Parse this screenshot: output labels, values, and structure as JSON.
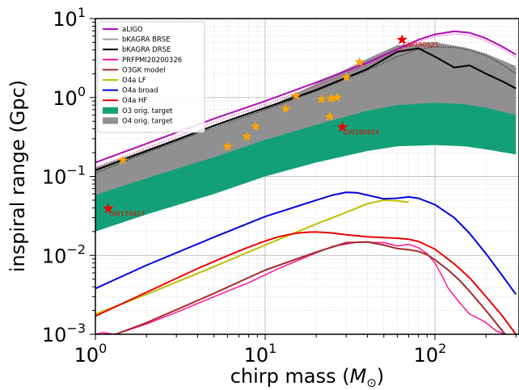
{
  "chart_data": {
    "type": "line",
    "xlabel": "chirp mass (",
    "xlabel_symbol": "M",
    "xlabel_sub": "⊙",
    "xlabel_close": ")",
    "ylabel": "inspiral range (Gpc)",
    "xscale": "log",
    "yscale": "log",
    "xlim": [
      1,
      300
    ],
    "ylim": [
      0.001,
      10
    ],
    "grid": true,
    "legend_position": "top-left",
    "x_ticks": [
      {
        "value": 1,
        "base": "10",
        "exp": "0"
      },
      {
        "value": 10,
        "base": "10",
        "exp": "1"
      },
      {
        "value": 100,
        "base": "10",
        "exp": "2"
      }
    ],
    "y_ticks": [
      {
        "value": 0.001,
        "base": "10",
        "exp": "−3"
      },
      {
        "value": 0.01,
        "base": "10",
        "exp": "−2"
      },
      {
        "value": 0.1,
        "base": "10",
        "exp": "−1"
      },
      {
        "value": 1,
        "base": "10",
        "exp": "0"
      },
      {
        "value": 10,
        "base": "10",
        "exp": "1"
      }
    ],
    "bands": [
      {
        "name": "O3 orig. target",
        "color": "#14a077",
        "x": [
          1,
          2,
          5,
          10,
          20,
          40,
          60,
          100,
          150,
          200,
          300
        ],
        "lower": [
          0.02,
          0.033,
          0.06,
          0.1,
          0.15,
          0.21,
          0.24,
          0.25,
          0.24,
          0.22,
          0.19
        ],
        "upper": [
          0.1,
          0.17,
          0.31,
          0.5,
          0.8,
          1.2,
          1.45,
          1.3,
          1.05,
          0.9,
          0.75
        ]
      },
      {
        "name": "O4 orig. target",
        "color": "#909090",
        "x": [
          1,
          2,
          5,
          10,
          20,
          40,
          60,
          100,
          150,
          200,
          300
        ],
        "lower": [
          0.058,
          0.095,
          0.175,
          0.29,
          0.45,
          0.68,
          0.8,
          0.86,
          0.82,
          0.74,
          0.6
        ],
        "upper": [
          0.13,
          0.22,
          0.42,
          0.72,
          1.5,
          3.1,
          4.6,
          5.0,
          4.3,
          3.6,
          2.5
        ]
      }
    ],
    "series": [
      {
        "name": "aLIGO",
        "color": "#b30bb3",
        "width": 2,
        "x": [
          1,
          2,
          5,
          10,
          20,
          40,
          60,
          80,
          100,
          130,
          160,
          200,
          250,
          300
        ],
        "values": [
          0.15,
          0.26,
          0.54,
          0.9,
          1.55,
          2.75,
          4.1,
          5.4,
          6.3,
          6.9,
          6.6,
          5.6,
          4.4,
          3.5
        ]
      },
      {
        "name": "bKAGRA BRSE",
        "color": "#a0a0a0",
        "width": 1,
        "dashed": true,
        "x": [
          1,
          2,
          5,
          10,
          20,
          40,
          60,
          80,
          100,
          130,
          160,
          200,
          250,
          300
        ],
        "values": [
          0.125,
          0.22,
          0.45,
          0.78,
          1.35,
          2.4,
          3.5,
          4.3,
          4.5,
          4.2,
          3.6,
          3.0,
          2.4,
          1.9
        ]
      },
      {
        "name": "bKAGRA DRSE",
        "color": "#000000",
        "width": 2,
        "x": [
          1,
          2,
          5,
          10,
          20,
          40,
          60,
          80,
          100,
          130,
          160,
          200,
          250,
          300
        ],
        "values": [
          0.12,
          0.21,
          0.44,
          0.74,
          1.25,
          2.3,
          3.8,
          4.2,
          3.3,
          2.4,
          2.55,
          2.0,
          1.6,
          1.3
        ]
      },
      {
        "name": "PRFPMI20200326",
        "color": "#ff1493",
        "width": 1.5,
        "x": [
          1,
          1.1,
          1.3,
          1.6,
          2,
          3,
          5,
          8,
          12,
          18,
          25,
          35,
          50,
          60,
          70,
          80,
          90,
          100,
          110,
          120,
          140,
          160,
          180,
          200,
          230,
          260,
          300
        ],
        "values": [
          0.001,
          0.00105,
          0.001,
          0.00115,
          0.00135,
          0.0019,
          0.003,
          0.0045,
          0.0068,
          0.0098,
          0.013,
          0.0147,
          0.0145,
          0.0132,
          0.0138,
          0.0125,
          0.0105,
          0.008,
          0.0055,
          0.0038,
          0.0025,
          0.0018,
          0.0016,
          0.0014,
          0.0011,
          0.001,
          0.0009
        ]
      },
      {
        "name": "O3GK model",
        "color": "#a52a2a",
        "width": 2,
        "x": [
          1,
          2,
          5,
          10,
          20,
          30,
          40,
          50,
          60,
          70,
          80,
          90,
          100,
          120,
          140,
          160,
          200,
          250,
          300
        ],
        "values": [
          0.0008,
          0.0014,
          0.0033,
          0.0065,
          0.011,
          0.0145,
          0.0148,
          0.0135,
          0.0122,
          0.0118,
          0.0112,
          0.0102,
          0.0088,
          0.0065,
          0.0048,
          0.0035,
          0.002,
          0.0011,
          0.0007
        ]
      },
      {
        "name": "O4a LF",
        "color": "#bebe00",
        "width": 2,
        "x": [
          1,
          2,
          5,
          10,
          20,
          30,
          40,
          50,
          60,
          70
        ],
        "values": [
          0.0018,
          0.0032,
          0.0072,
          0.0135,
          0.025,
          0.035,
          0.045,
          0.05,
          0.049,
          0.047
        ]
      },
      {
        "name": "O4a broad",
        "color": "#0000dd",
        "width": 2,
        "x": [
          1,
          2,
          5,
          10,
          20,
          25,
          30,
          35,
          40,
          50,
          60,
          70,
          80,
          100,
          130,
          160,
          200,
          250,
          300
        ],
        "values": [
          0.0038,
          0.0075,
          0.017,
          0.031,
          0.05,
          0.058,
          0.063,
          0.062,
          0.058,
          0.052,
          0.053,
          0.055,
          0.053,
          0.044,
          0.03,
          0.019,
          0.0105,
          0.0055,
          0.0032
        ]
      },
      {
        "name": "O4a HF",
        "color": "#ee0000",
        "width": 2,
        "x": [
          1,
          2,
          4,
          6,
          8,
          10,
          12,
          15,
          18,
          20,
          25,
          30,
          40,
          50,
          60,
          70,
          80,
          100,
          130,
          160,
          200,
          250,
          300
        ],
        "values": [
          0.0017,
          0.0034,
          0.0068,
          0.0099,
          0.0127,
          0.0152,
          0.0172,
          0.019,
          0.0197,
          0.0198,
          0.0192,
          0.0182,
          0.0172,
          0.0168,
          0.0165,
          0.016,
          0.015,
          0.012,
          0.0078,
          0.0052,
          0.003,
          0.0017,
          0.001
        ]
      }
    ],
    "dotted_curves": [
      {
        "color": "#000000",
        "x": [
          1,
          2,
          5,
          10,
          20,
          40,
          60,
          80,
          100,
          130,
          160,
          200,
          250,
          300
        ],
        "values": [
          0.11,
          0.2,
          0.42,
          0.7,
          1.2,
          2.2,
          3.3,
          4.1,
          4.4,
          4.3,
          4.0,
          3.4,
          2.6,
          2.0
        ]
      },
      {
        "color": "#ff1493",
        "x": [
          1,
          2,
          5,
          10,
          20,
          40,
          60,
          80,
          100,
          130,
          160,
          200,
          250,
          300
        ],
        "values": [
          0.13,
          0.23,
          0.48,
          0.82,
          1.4,
          2.6,
          3.9,
          5.1,
          5.9,
          6.4,
          6.1,
          5.2,
          4.1,
          3.2
        ]
      }
    ],
    "stars": [
      {
        "x": 1.45,
        "y": 0.16
      },
      {
        "x": 6.0,
        "y": 0.24
      },
      {
        "x": 7.8,
        "y": 0.32
      },
      {
        "x": 8.8,
        "y": 0.43
      },
      {
        "x": 13.2,
        "y": 0.72
      },
      {
        "x": 15.2,
        "y": 1.05
      },
      {
        "x": 21.5,
        "y": 0.95
      },
      {
        "x": 24.5,
        "y": 0.97
      },
      {
        "x": 26.5,
        "y": 1.0
      },
      {
        "x": 24.0,
        "y": 0.57
      },
      {
        "x": 30.0,
        "y": 1.8
      },
      {
        "x": 36.0,
        "y": 2.8
      }
    ],
    "star_color": "#ffa500",
    "events": [
      {
        "label": "GW170817",
        "x": 1.19,
        "y": 0.039
      },
      {
        "label": "GW190814",
        "x": 28.5,
        "y": 0.42
      },
      {
        "label": "GW190521",
        "x": 64,
        "y": 5.4
      }
    ],
    "event_color": "#ee0000"
  }
}
